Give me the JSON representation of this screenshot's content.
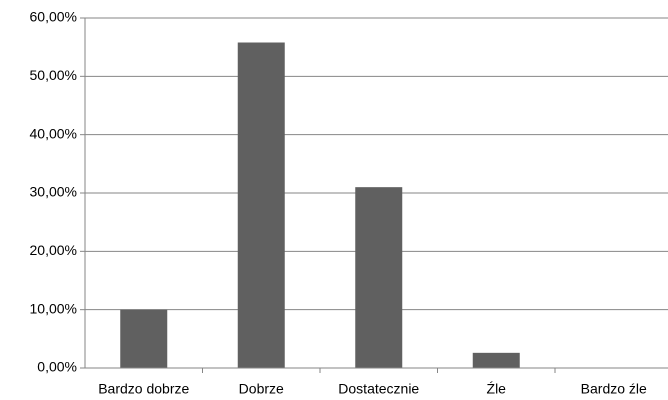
{
  "chart_data": {
    "type": "bar",
    "categories": [
      "Bardzo dobrze",
      "Dobrze",
      "Dostatecznie",
      "Źle",
      "Bardzo źle"
    ],
    "values": [
      10,
      55.8,
      31,
      2.6,
      0
    ],
    "color": "#606060",
    "ylim": [
      0,
      60
    ],
    "yticks": [
      {
        "value": 0,
        "label": "0,00%"
      },
      {
        "value": 10,
        "label": "10,00%"
      },
      {
        "value": 20,
        "label": "20,00%"
      },
      {
        "value": 30,
        "label": "30,00%"
      },
      {
        "value": 40,
        "label": "40,00%"
      },
      {
        "value": 50,
        "label": "50,00%"
      },
      {
        "value": 60,
        "label": "60,00%"
      }
    ],
    "grid": true
  }
}
